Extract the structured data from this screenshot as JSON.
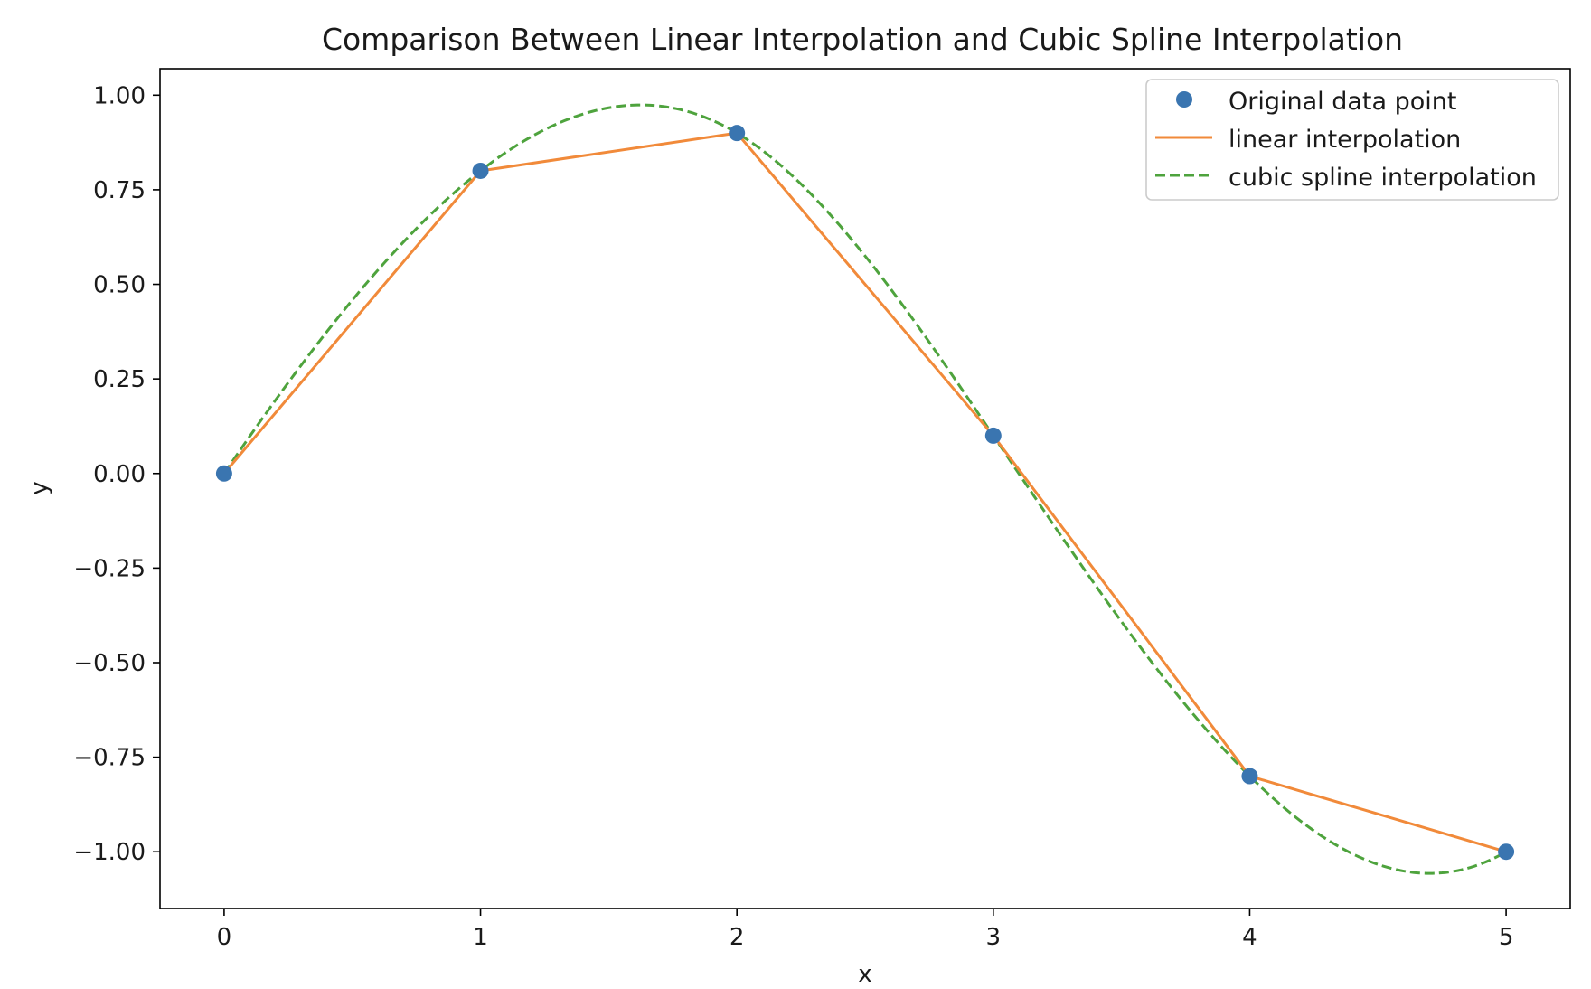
{
  "chart_data": {
    "type": "line",
    "title": "Comparison Between Linear Interpolation and Cubic Spline Interpolation",
    "xlabel": "x",
    "ylabel": "y",
    "xlim": [
      -0.25,
      5.25
    ],
    "ylim": [
      -1.15,
      1.07
    ],
    "grid": false,
    "legend_position": "top-right",
    "x_ticks": [
      0,
      1,
      2,
      3,
      4,
      5
    ],
    "x_tick_labels": [
      "0",
      "1",
      "2",
      "3",
      "4",
      "5"
    ],
    "y_ticks": [
      1.0,
      0.75,
      0.5,
      0.25,
      0.0,
      -0.25,
      -0.5,
      -0.75,
      -1.0
    ],
    "y_tick_labels": [
      "1.00",
      "0.75",
      "0.50",
      "0.25",
      "0.00",
      "−0.25",
      "−0.50",
      "−0.75",
      "−1.00"
    ],
    "series": [
      {
        "name": "Original data point",
        "kind": "scatter",
        "color": "#3a75b0",
        "x": [
          0,
          1,
          2,
          3,
          4,
          5
        ],
        "y": [
          0.0,
          0.8,
          0.9,
          0.1,
          -0.8,
          -1.0
        ]
      },
      {
        "name": "linear interpolation",
        "kind": "line",
        "color": "#f18a3a",
        "x": [
          0,
          1,
          2,
          3,
          4,
          5
        ],
        "y": [
          0.0,
          0.8,
          0.9,
          0.1,
          -0.8,
          -1.0
        ]
      },
      {
        "name": "cubic spline interpolation",
        "kind": "dashed-line",
        "color": "#4ea33d",
        "interpolation": "cubic-spline-not-a-knot",
        "x": [
          0,
          1,
          2,
          3,
          4,
          5
        ],
        "y": [
          0.0,
          0.8,
          0.9,
          0.1,
          -0.8,
          -1.0
        ]
      }
    ]
  }
}
